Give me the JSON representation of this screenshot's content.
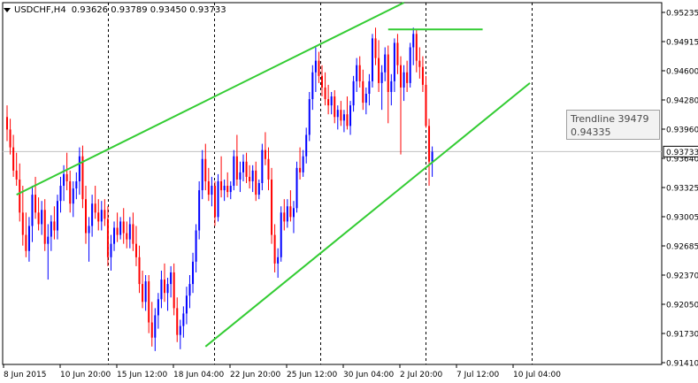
{
  "window": {
    "symbol_label": "USDCHF,H4",
    "ohlc": "0.93626 0.93789 0.93450 0.93733"
  },
  "tooltip": {
    "name": "Trendline 39479",
    "value": "0.94335"
  },
  "colors": {
    "bull": "#0000ff",
    "bear": "#ff0000",
    "trendline": "#33cc33",
    "grid": "#000000",
    "bid_line": "#c0c0c0"
  },
  "chart_data": {
    "type": "candlestick",
    "symbol": "USDCHF",
    "timeframe": "H4",
    "ylim": [
      0.9135,
      0.954
    ],
    "current_price": "0.93733",
    "y_ticks": [
      "0.95235",
      "0.94915",
      "0.94600",
      "0.94280",
      "0.93960",
      "0.93640",
      "0.93325",
      "0.93005",
      "0.92685",
      "0.92370",
      "0.92050",
      "0.91730",
      "0.91410"
    ],
    "x_ticks": [
      "8 Jun 2015",
      "10 Jun 20:00",
      "15 Jun 12:00",
      "18 Jun 04:00",
      "22 Jun 20:00",
      "25 Jun 12:00",
      "30 Jun 04:00",
      "2 Jul 20:00",
      "7 Jul 12:00",
      "10 Jul 04:00"
    ],
    "candles": [
      {
        "o": 0.9412,
        "h": 0.9425,
        "l": 0.9385,
        "c": 0.9398
      },
      {
        "o": 0.9398,
        "h": 0.941,
        "l": 0.937,
        "c": 0.9378
      },
      {
        "o": 0.9378,
        "h": 0.9392,
        "l": 0.9345,
        "c": 0.9352
      },
      {
        "o": 0.9352,
        "h": 0.9372,
        "l": 0.9335,
        "c": 0.9342
      },
      {
        "o": 0.9342,
        "h": 0.936,
        "l": 0.9295,
        "c": 0.9305
      },
      {
        "o": 0.9305,
        "h": 0.9335,
        "l": 0.9268,
        "c": 0.928
      },
      {
        "o": 0.928,
        "h": 0.9305,
        "l": 0.9255,
        "c": 0.9262
      },
      {
        "o": 0.9262,
        "h": 0.93,
        "l": 0.925,
        "c": 0.929
      },
      {
        "o": 0.929,
        "h": 0.9335,
        "l": 0.9272,
        "c": 0.9325
      },
      {
        "o": 0.9325,
        "h": 0.9345,
        "l": 0.9298,
        "c": 0.9305
      },
      {
        "o": 0.9305,
        "h": 0.9322,
        "l": 0.9285,
        "c": 0.9292
      },
      {
        "o": 0.9292,
        "h": 0.9318,
        "l": 0.928,
        "c": 0.9308
      },
      {
        "o": 0.9308,
        "h": 0.932,
        "l": 0.9262,
        "c": 0.927
      },
      {
        "o": 0.927,
        "h": 0.9292,
        "l": 0.923,
        "c": 0.9278
      },
      {
        "o": 0.9278,
        "h": 0.9302,
        "l": 0.9262,
        "c": 0.9295
      },
      {
        "o": 0.9295,
        "h": 0.9312,
        "l": 0.9275,
        "c": 0.9285
      },
      {
        "o": 0.9285,
        "h": 0.9325,
        "l": 0.9275,
        "c": 0.9318
      },
      {
        "o": 0.9318,
        "h": 0.9345,
        "l": 0.9305,
        "c": 0.9335
      },
      {
        "o": 0.9335,
        "h": 0.9358,
        "l": 0.9318,
        "c": 0.9348
      },
      {
        "o": 0.9348,
        "h": 0.9372,
        "l": 0.933,
        "c": 0.934
      },
      {
        "o": 0.934,
        "h": 0.9352,
        "l": 0.9305,
        "c": 0.9315
      },
      {
        "o": 0.9315,
        "h": 0.934,
        "l": 0.93,
        "c": 0.9332
      },
      {
        "o": 0.9332,
        "h": 0.935,
        "l": 0.932,
        "c": 0.934
      },
      {
        "o": 0.934,
        "h": 0.9378,
        "l": 0.9325,
        "c": 0.9368
      },
      {
        "o": 0.9368,
        "h": 0.938,
        "l": 0.931,
        "c": 0.932
      },
      {
        "o": 0.932,
        "h": 0.9335,
        "l": 0.927,
        "c": 0.9282
      },
      {
        "o": 0.9282,
        "h": 0.93,
        "l": 0.925,
        "c": 0.929
      },
      {
        "o": 0.929,
        "h": 0.9325,
        "l": 0.9278,
        "c": 0.9315
      },
      {
        "o": 0.9315,
        "h": 0.9335,
        "l": 0.9298,
        "c": 0.9305
      },
      {
        "o": 0.9305,
        "h": 0.932,
        "l": 0.9285,
        "c": 0.9295
      },
      {
        "o": 0.9295,
        "h": 0.9318,
        "l": 0.9285,
        "c": 0.9308
      },
      {
        "o": 0.9308,
        "h": 0.932,
        "l": 0.929,
        "c": 0.9298
      },
      {
        "o": 0.9298,
        "h": 0.9312,
        "l": 0.9245,
        "c": 0.9255
      },
      {
        "o": 0.9255,
        "h": 0.928,
        "l": 0.924,
        "c": 0.927
      },
      {
        "o": 0.927,
        "h": 0.9295,
        "l": 0.9262,
        "c": 0.9288
      },
      {
        "o": 0.9288,
        "h": 0.9305,
        "l": 0.9272,
        "c": 0.928
      },
      {
        "o": 0.928,
        "h": 0.93,
        "l": 0.9275,
        "c": 0.9295
      },
      {
        "o": 0.9295,
        "h": 0.931,
        "l": 0.927,
        "c": 0.9282
      },
      {
        "o": 0.9282,
        "h": 0.9295,
        "l": 0.9265,
        "c": 0.9275
      },
      {
        "o": 0.9275,
        "h": 0.93,
        "l": 0.9265,
        "c": 0.9292
      },
      {
        "o": 0.9292,
        "h": 0.9305,
        "l": 0.9262,
        "c": 0.927
      },
      {
        "o": 0.927,
        "h": 0.929,
        "l": 0.9245,
        "c": 0.9255
      },
      {
        "o": 0.9255,
        "h": 0.9268,
        "l": 0.9215,
        "c": 0.9225
      },
      {
        "o": 0.9225,
        "h": 0.924,
        "l": 0.9198,
        "c": 0.9205
      },
      {
        "o": 0.9205,
        "h": 0.9235,
        "l": 0.9195,
        "c": 0.9228
      },
      {
        "o": 0.9228,
        "h": 0.9235,
        "l": 0.917,
        "c": 0.9182
      },
      {
        "o": 0.9182,
        "h": 0.9205,
        "l": 0.9155,
        "c": 0.9165
      },
      {
        "o": 0.9165,
        "h": 0.9198,
        "l": 0.915,
        "c": 0.919
      },
      {
        "o": 0.919,
        "h": 0.9215,
        "l": 0.9175,
        "c": 0.9208
      },
      {
        "o": 0.9208,
        "h": 0.924,
        "l": 0.9198,
        "c": 0.923
      },
      {
        "o": 0.923,
        "h": 0.9248,
        "l": 0.9205,
        "c": 0.9215
      },
      {
        "o": 0.9215,
        "h": 0.9232,
        "l": 0.9195,
        "c": 0.9225
      },
      {
        "o": 0.9225,
        "h": 0.9245,
        "l": 0.921,
        "c": 0.9238
      },
      {
        "o": 0.9238,
        "h": 0.9248,
        "l": 0.919,
        "c": 0.9198
      },
      {
        "o": 0.9198,
        "h": 0.921,
        "l": 0.916,
        "c": 0.9168
      },
      {
        "o": 0.9168,
        "h": 0.9185,
        "l": 0.9152,
        "c": 0.9178
      },
      {
        "o": 0.9178,
        "h": 0.92,
        "l": 0.9165,
        "c": 0.9192
      },
      {
        "o": 0.9192,
        "h": 0.9222,
        "l": 0.918,
        "c": 0.9212
      },
      {
        "o": 0.9212,
        "h": 0.9235,
        "l": 0.9198,
        "c": 0.9225
      },
      {
        "o": 0.9225,
        "h": 0.926,
        "l": 0.9215,
        "c": 0.925
      },
      {
        "o": 0.925,
        "h": 0.9292,
        "l": 0.9238,
        "c": 0.9285
      },
      {
        "o": 0.9285,
        "h": 0.934,
        "l": 0.9275,
        "c": 0.933
      },
      {
        "o": 0.933,
        "h": 0.9375,
        "l": 0.932,
        "c": 0.9365
      },
      {
        "o": 0.9365,
        "h": 0.9382,
        "l": 0.933,
        "c": 0.934
      },
      {
        "o": 0.934,
        "h": 0.9355,
        "l": 0.9318,
        "c": 0.9325
      },
      {
        "o": 0.9325,
        "h": 0.9345,
        "l": 0.9312,
        "c": 0.9335
      },
      {
        "o": 0.9335,
        "h": 0.934,
        "l": 0.929,
        "c": 0.93
      },
      {
        "o": 0.93,
        "h": 0.9348,
        "l": 0.9295,
        "c": 0.934
      },
      {
        "o": 0.934,
        "h": 0.9368,
        "l": 0.9322,
        "c": 0.933
      },
      {
        "o": 0.933,
        "h": 0.9342,
        "l": 0.9318,
        "c": 0.9335
      },
      {
        "o": 0.9335,
        "h": 0.935,
        "l": 0.9322,
        "c": 0.9328
      },
      {
        "o": 0.9328,
        "h": 0.934,
        "l": 0.932,
        "c": 0.9335
      },
      {
        "o": 0.9335,
        "h": 0.9375,
        "l": 0.933,
        "c": 0.9368
      },
      {
        "o": 0.9368,
        "h": 0.9392,
        "l": 0.9335,
        "c": 0.9342
      },
      {
        "o": 0.9342,
        "h": 0.9362,
        "l": 0.9328,
        "c": 0.935
      },
      {
        "o": 0.935,
        "h": 0.937,
        "l": 0.934,
        "c": 0.9362
      },
      {
        "o": 0.9362,
        "h": 0.9372,
        "l": 0.9338,
        "c": 0.9345
      },
      {
        "o": 0.9345,
        "h": 0.9358,
        "l": 0.9332,
        "c": 0.934
      },
      {
        "o": 0.934,
        "h": 0.9358,
        "l": 0.9328,
        "c": 0.9352
      },
      {
        "o": 0.9352,
        "h": 0.9362,
        "l": 0.9318,
        "c": 0.9325
      },
      {
        "o": 0.9325,
        "h": 0.9342,
        "l": 0.932,
        "c": 0.9338
      },
      {
        "o": 0.9338,
        "h": 0.9382,
        "l": 0.933,
        "c": 0.9375
      },
      {
        "o": 0.9375,
        "h": 0.9395,
        "l": 0.9358,
        "c": 0.9365
      },
      {
        "o": 0.9365,
        "h": 0.9378,
        "l": 0.933,
        "c": 0.9342
      },
      {
        "o": 0.9342,
        "h": 0.9355,
        "l": 0.927,
        "c": 0.928
      },
      {
        "o": 0.928,
        "h": 0.9292,
        "l": 0.9238,
        "c": 0.9248
      },
      {
        "o": 0.9248,
        "h": 0.9265,
        "l": 0.9232,
        "c": 0.9255
      },
      {
        "o": 0.9255,
        "h": 0.9312,
        "l": 0.925,
        "c": 0.9305
      },
      {
        "o": 0.9305,
        "h": 0.932,
        "l": 0.9285,
        "c": 0.9295
      },
      {
        "o": 0.9295,
        "h": 0.932,
        "l": 0.9288,
        "c": 0.9312
      },
      {
        "o": 0.9312,
        "h": 0.933,
        "l": 0.9295,
        "c": 0.93
      },
      {
        "o": 0.93,
        "h": 0.9318,
        "l": 0.9282,
        "c": 0.931
      },
      {
        "o": 0.931,
        "h": 0.9362,
        "l": 0.9305,
        "c": 0.9355
      },
      {
        "o": 0.9355,
        "h": 0.9378,
        "l": 0.9342,
        "c": 0.935
      },
      {
        "o": 0.935,
        "h": 0.9375,
        "l": 0.9345,
        "c": 0.9368
      },
      {
        "o": 0.9368,
        "h": 0.94,
        "l": 0.936,
        "c": 0.9392
      },
      {
        "o": 0.9392,
        "h": 0.944,
        "l": 0.9385,
        "c": 0.9432
      },
      {
        "o": 0.9432,
        "h": 0.947,
        "l": 0.942,
        "c": 0.9462
      },
      {
        "o": 0.9462,
        "h": 0.949,
        "l": 0.944,
        "c": 0.9475
      },
      {
        "o": 0.9475,
        "h": 0.9485,
        "l": 0.945,
        "c": 0.9458
      },
      {
        "o": 0.9458,
        "h": 0.947,
        "l": 0.9435,
        "c": 0.9445
      },
      {
        "o": 0.9445,
        "h": 0.9462,
        "l": 0.9425,
        "c": 0.9432
      },
      {
        "o": 0.9432,
        "h": 0.9448,
        "l": 0.9415,
        "c": 0.9425
      },
      {
        "o": 0.9425,
        "h": 0.944,
        "l": 0.9415,
        "c": 0.9435
      },
      {
        "o": 0.9435,
        "h": 0.9442,
        "l": 0.9405,
        "c": 0.9412
      },
      {
        "o": 0.9412,
        "h": 0.9425,
        "l": 0.9398,
        "c": 0.942
      },
      {
        "o": 0.942,
        "h": 0.943,
        "l": 0.9402,
        "c": 0.9408
      },
      {
        "o": 0.9408,
        "h": 0.942,
        "l": 0.9395,
        "c": 0.9415
      },
      {
        "o": 0.9415,
        "h": 0.9435,
        "l": 0.9398,
        "c": 0.9402
      },
      {
        "o": 0.9402,
        "h": 0.943,
        "l": 0.9392,
        "c": 0.9425
      },
      {
        "o": 0.9425,
        "h": 0.9458,
        "l": 0.9418,
        "c": 0.9452
      },
      {
        "o": 0.9452,
        "h": 0.9478,
        "l": 0.944,
        "c": 0.947
      },
      {
        "o": 0.947,
        "h": 0.948,
        "l": 0.9445,
        "c": 0.9452
      },
      {
        "o": 0.9452,
        "h": 0.9465,
        "l": 0.942,
        "c": 0.9428
      },
      {
        "o": 0.9428,
        "h": 0.9445,
        "l": 0.9415,
        "c": 0.9438
      },
      {
        "o": 0.9438,
        "h": 0.946,
        "l": 0.9425,
        "c": 0.9452
      },
      {
        "o": 0.9452,
        "h": 0.9505,
        "l": 0.9445,
        "c": 0.95
      },
      {
        "o": 0.95,
        "h": 0.9512,
        "l": 0.947,
        "c": 0.9478
      },
      {
        "o": 0.9478,
        "h": 0.9498,
        "l": 0.944,
        "c": 0.945
      },
      {
        "o": 0.945,
        "h": 0.947,
        "l": 0.942,
        "c": 0.9462
      },
      {
        "o": 0.9462,
        "h": 0.949,
        "l": 0.9452,
        "c": 0.9482
      },
      {
        "o": 0.9482,
        "h": 0.9492,
        "l": 0.9405,
        "c": 0.944
      },
      {
        "o": 0.944,
        "h": 0.946,
        "l": 0.9425,
        "c": 0.9452
      },
      {
        "o": 0.9452,
        "h": 0.95,
        "l": 0.944,
        "c": 0.9495
      },
      {
        "o": 0.9495,
        "h": 0.9505,
        "l": 0.946,
        "c": 0.947
      },
      {
        "o": 0.947,
        "h": 0.948,
        "l": 0.937,
        "c": 0.9445
      },
      {
        "o": 0.9445,
        "h": 0.947,
        "l": 0.943,
        "c": 0.9462
      },
      {
        "o": 0.9462,
        "h": 0.9475,
        "l": 0.944,
        "c": 0.945
      },
      {
        "o": 0.945,
        "h": 0.9495,
        "l": 0.9445,
        "c": 0.949
      },
      {
        "o": 0.949,
        "h": 0.9512,
        "l": 0.947,
        "c": 0.9505
      },
      {
        "o": 0.9505,
        "h": 0.951,
        "l": 0.9462,
        "c": 0.9475
      },
      {
        "o": 0.9475,
        "h": 0.949,
        "l": 0.9455,
        "c": 0.9468
      },
      {
        "o": 0.9468,
        "h": 0.948,
        "l": 0.944,
        "c": 0.9448
      },
      {
        "o": 0.9448,
        "h": 0.9458,
        "l": 0.94,
        "c": 0.9402
      },
      {
        "o": 0.9402,
        "h": 0.941,
        "l": 0.9335,
        "c": 0.9362
      },
      {
        "o": 0.9362,
        "h": 0.9379,
        "l": 0.9345,
        "c": 0.9373
      }
    ],
    "trendlines": [
      {
        "name": "channel-upper",
        "points": [
          [
            3,
            0.9325
          ],
          [
            126,
            0.954
          ]
        ]
      },
      {
        "name": "channel-lower",
        "points": [
          [
            63,
            0.9155
          ],
          [
            166,
            0.945
          ]
        ]
      },
      {
        "name": "resistance-top",
        "points": [
          [
            121,
            0.951
          ],
          [
            151,
            0.951
          ]
        ]
      }
    ]
  }
}
